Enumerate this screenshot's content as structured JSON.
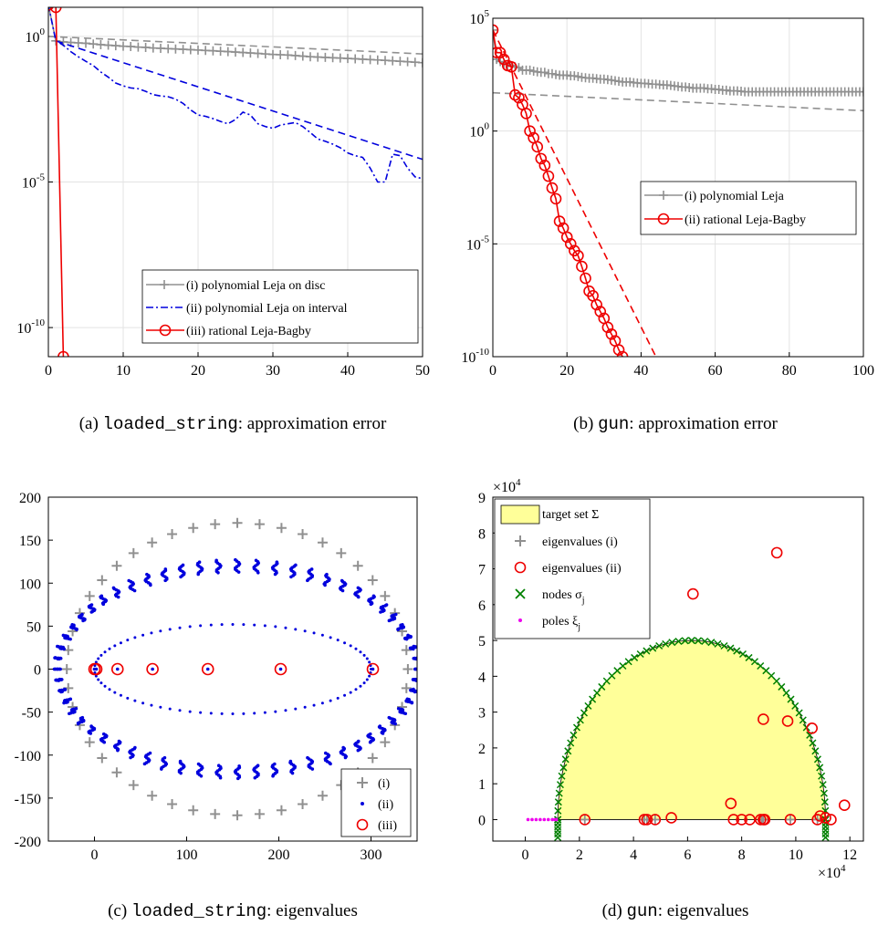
{
  "chart_data": [
    {
      "id": "a",
      "type": "line",
      "caption_code": "loaded_string",
      "caption_text": ": approximation error",
      "caption_prefix": "(a) ",
      "yscale": "log",
      "xlim": [
        0,
        50
      ],
      "ylim": [
        1e-11,
        10.0
      ],
      "xticks": [
        0,
        10,
        20,
        30,
        40,
        50
      ],
      "xtick_labels": [
        "0",
        "10",
        "20",
        "30",
        "40",
        "50"
      ],
      "yticks": [
        1,
        1e-05,
        1e-10
      ],
      "ytick_labels": [
        {
          "base": "10",
          "exp": "0"
        },
        {
          "base": "10",
          "exp": "-5"
        },
        {
          "base": "10",
          "exp": "-10"
        }
      ],
      "grid": true,
      "legend": "bottom-right",
      "series": [
        {
          "name": "(i) polynomial Leja on disc",
          "color": "#909090",
          "style": "plus-line",
          "x": [
            0,
            1,
            2,
            3,
            4,
            5,
            6,
            7,
            8,
            9,
            10,
            11,
            12,
            13,
            14,
            15,
            16,
            17,
            18,
            19,
            20,
            21,
            22,
            23,
            24,
            25,
            26,
            27,
            28,
            29,
            30,
            31,
            32,
            33,
            34,
            35,
            36,
            37,
            38,
            39,
            40,
            41,
            42,
            43,
            44,
            45,
            46,
            47,
            48,
            49,
            50
          ],
          "y": [
            12,
            0.7,
            0.65,
            0.62,
            0.6,
            0.58,
            0.55,
            0.52,
            0.5,
            0.48,
            0.46,
            0.45,
            0.43,
            0.42,
            0.4,
            0.39,
            0.38,
            0.37,
            0.36,
            0.35,
            0.34,
            0.33,
            0.32,
            0.31,
            0.3,
            0.29,
            0.28,
            0.27,
            0.26,
            0.25,
            0.24,
            0.235,
            0.23,
            0.22,
            0.21,
            0.2,
            0.195,
            0.19,
            0.185,
            0.18,
            0.175,
            0.17,
            0.165,
            0.16,
            0.155,
            0.15,
            0.145,
            0.14,
            0.135,
            0.13,
            0.125
          ]
        },
        {
          "name": "",
          "color": "#909090",
          "style": "dashed",
          "x": [
            0,
            50
          ],
          "y": [
            1.0,
            0.25
          ]
        },
        {
          "name": "(ii) polynomial Leja on interval",
          "color": "#0000dd",
          "style": "dashdot",
          "x": [
            0,
            1,
            2,
            3,
            4,
            5,
            6,
            7,
            8,
            9,
            10,
            11,
            12,
            13,
            14,
            15,
            16,
            17,
            18,
            19,
            20,
            21,
            22,
            23,
            24,
            25,
            26,
            27,
            28,
            29,
            30,
            31,
            32,
            33,
            34,
            35,
            36,
            37,
            38,
            39,
            40,
            41,
            42,
            43,
            44,
            45,
            46,
            47,
            48,
            49,
            50
          ],
          "y": [
            12,
            0.7,
            0.5,
            0.3,
            0.2,
            0.14,
            0.1,
            0.06,
            0.04,
            0.025,
            0.02,
            0.017,
            0.016,
            0.013,
            0.01,
            0.009,
            0.0085,
            0.007,
            0.005,
            0.003,
            0.002,
            0.0018,
            0.0015,
            0.0012,
            0.001,
            0.0014,
            0.0025,
            0.002,
            0.001,
            0.0008,
            0.0007,
            0.0009,
            0.001,
            0.0011,
            0.0008,
            0.0005,
            0.0003,
            0.00025,
            0.0002,
            0.00015,
            0.0001,
            8e-05,
            7e-05,
            3e-05,
            1e-05,
            1e-05,
            9e-05,
            8e-05,
            3e-05,
            1.5e-05,
            1.3e-05
          ]
        },
        {
          "name": "",
          "color": "#0000dd",
          "style": "dashed",
          "x": [
            1,
            50
          ],
          "y": [
            0.7,
            6e-05
          ]
        },
        {
          "name": "(iii) rational Leja-Bagby",
          "color": "#ee0000",
          "style": "circle-line",
          "x": [
            0,
            1,
            2
          ],
          "y": [
            12,
            10,
            1e-11
          ]
        }
      ]
    },
    {
      "id": "b",
      "type": "line",
      "caption_code": "gun",
      "caption_text": ": approximation error",
      "caption_prefix": "(b) ",
      "yscale": "log",
      "xlim": [
        0,
        100
      ],
      "ylim": [
        1e-10,
        100000.0
      ],
      "xticks": [
        0,
        20,
        40,
        60,
        80,
        100
      ],
      "xtick_labels": [
        "0",
        "20",
        "40",
        "60",
        "80",
        "100"
      ],
      "yticks": [
        100000.0,
        1,
        1e-05,
        1e-10
      ],
      "ytick_labels": [
        {
          "base": "10",
          "exp": "5"
        },
        {
          "base": "10",
          "exp": "0"
        },
        {
          "base": "10",
          "exp": "-5"
        },
        {
          "base": "10",
          "exp": "-10"
        }
      ],
      "grid": true,
      "legend": "center-right",
      "series": [
        {
          "name": "(i) polynomial Leja",
          "color": "#909090",
          "style": "plus-line",
          "x": [
            0,
            1,
            2,
            3,
            4,
            5,
            6,
            7,
            8,
            9,
            10,
            11,
            12,
            13,
            14,
            15,
            16,
            17,
            18,
            19,
            20,
            21,
            22,
            23,
            24,
            25,
            26,
            27,
            28,
            29,
            30,
            31,
            32,
            33,
            34,
            35,
            36,
            37,
            38,
            39,
            40,
            41,
            42,
            43,
            44,
            45,
            46,
            47,
            48,
            49,
            50,
            51,
            52,
            53,
            54,
            55,
            56,
            57,
            58,
            59,
            60,
            61,
            62,
            63,
            64,
            65,
            66,
            67,
            68,
            69,
            70,
            71,
            72,
            73,
            74,
            75,
            76,
            77,
            78,
            79,
            80,
            81,
            82,
            83,
            84,
            85,
            86,
            87,
            88,
            89,
            90,
            91,
            92,
            93,
            94,
            95,
            96,
            97,
            98,
            99,
            100
          ],
          "y": [
            30000,
            1500,
            1200,
            1000,
            900,
            800,
            700,
            650,
            500,
            500,
            500,
            450,
            420,
            400,
            400,
            350,
            350,
            320,
            300,
            300,
            300,
            280,
            280,
            260,
            240,
            230,
            220,
            220,
            210,
            200,
            200,
            190,
            180,
            170,
            160,
            150,
            150,
            150,
            140,
            135,
            130,
            130,
            125,
            120,
            120,
            115,
            110,
            110,
            105,
            100,
            95,
            90,
            90,
            85,
            80,
            80,
            80,
            80,
            75,
            75,
            70,
            70,
            65,
            65,
            60,
            60,
            60,
            58,
            55,
            55,
            55,
            55,
            55,
            55,
            55,
            55,
            55,
            55,
            55,
            55,
            55,
            55,
            55,
            55,
            55,
            55,
            55,
            55,
            55,
            55,
            55,
            55,
            55,
            55,
            55,
            55,
            55,
            55,
            55,
            55,
            55
          ]
        },
        {
          "name": "",
          "color": "#909090",
          "style": "dashed",
          "x": [
            0,
            100
          ],
          "y": [
            50,
            8
          ]
        },
        {
          "name": "(ii) rational Leja-Bagby",
          "color": "#ee0000",
          "style": "circle-line",
          "x": [
            0,
            1,
            2,
            3,
            4,
            5,
            6,
            7,
            8,
            9,
            10,
            11,
            12,
            13,
            14,
            15,
            16,
            17,
            18,
            19,
            20,
            21,
            22,
            23,
            24,
            25,
            26,
            27,
            28,
            29,
            30,
            31,
            32,
            33,
            34,
            35,
            36,
            37
          ],
          "y": [
            30000,
            3000,
            3000,
            1500,
            800,
            700,
            40,
            30,
            15,
            6,
            1,
            0.5,
            0.2,
            0.06,
            0.03,
            0.01,
            0.003,
            0.001,
            0.0001,
            5e-05,
            2e-05,
            1e-05,
            5e-06,
            3e-06,
            1e-06,
            3e-07,
            8e-08,
            5e-08,
            2e-08,
            1e-08,
            5e-09,
            2e-09,
            1e-09,
            5e-10,
            2e-10,
            1e-10,
            5e-11,
            2e-11
          ]
        },
        {
          "name": "",
          "color": "#ee0000",
          "style": "dashed",
          "x": [
            0,
            44
          ],
          "y": [
            30000,
            1e-10
          ]
        }
      ]
    },
    {
      "id": "c",
      "type": "scatter",
      "caption_code": "loaded_string",
      "caption_text": ": eigenvalues",
      "caption_prefix": "(c) ",
      "xlim": [
        -50,
        350
      ],
      "ylim": [
        -200,
        200
      ],
      "xticks": [
        0,
        100,
        200,
        300
      ],
      "xtick_labels": [
        "0",
        "100",
        "200",
        "300"
      ],
      "yticks": [
        200,
        150,
        100,
        50,
        0,
        -50,
        -100,
        -150,
        -200
      ],
      "ytick_labels": [
        "200",
        "150",
        "100",
        "50",
        "0",
        "-50",
        "-100",
        "-150",
        "-200"
      ],
      "grid": false,
      "legend": "bottom-right",
      "ellipses": {
        "outer": {
          "cx": 155,
          "cy": 0,
          "rx": 185,
          "ry": 170
        },
        "blue": {
          "cx": 155,
          "cy": 0,
          "rx": 195,
          "ry": 120
        },
        "inner": {
          "cx": 150,
          "cy": 0,
          "rx": 150,
          "ry": 52
        }
      },
      "series": [
        {
          "name": "(i)",
          "color": "#909090",
          "marker": "plus"
        },
        {
          "name": "(ii)",
          "color": "#0000dd",
          "marker": "dot"
        },
        {
          "name": "(iii)",
          "color": "#ee0000",
          "marker": "circle",
          "x": [
            0,
            2,
            25,
            63,
            123,
            202,
            302
          ],
          "y": [
            0,
            0,
            0,
            0,
            0,
            0,
            0
          ]
        }
      ]
    },
    {
      "id": "d",
      "type": "scatter",
      "caption_code": "gun",
      "caption_text": ": eigenvalues",
      "caption_prefix": "(d) ",
      "xlim": [
        -1.2,
        12.5
      ],
      "ylim": [
        -0.6,
        9
      ],
      "x_multiplier": {
        "base": "×10",
        "exp": "4"
      },
      "y_multiplier": {
        "base": "×10",
        "exp": "4"
      },
      "xticks": [
        0,
        2,
        4,
        6,
        8,
        10,
        12
      ],
      "xtick_labels": [
        "0",
        "2",
        "4",
        "6",
        "8",
        "10",
        "12"
      ],
      "yticks": [
        0,
        1,
        2,
        3,
        4,
        5,
        6,
        7,
        8,
        9
      ],
      "ytick_labels": [
        "0",
        "1",
        "2",
        "3",
        "4",
        "5",
        "6",
        "7",
        "8",
        "9"
      ],
      "grid": false,
      "legend": "top-left",
      "target_color": "#ffff99",
      "semicircle": {
        "cx": 6.15,
        "r": 4.95,
        "height": 5.0
      },
      "series": [
        {
          "name": "target set Σ",
          "color": "#ffff99",
          "marker": "patch"
        },
        {
          "name": "eigenvalues (i)",
          "color": "#909090",
          "marker": "plus",
          "x": [
            2.2,
            4.4,
            4.5,
            4.8,
            8.75,
            8.8,
            9.8,
            10.8
          ],
          "y": [
            0,
            0,
            0,
            0,
            0,
            0,
            0,
            0
          ]
        },
        {
          "name": "eigenvalues (ii)",
          "color": "#ee0000",
          "marker": "circle",
          "x": [
            9.3,
            6.2,
            8.8,
            9.7,
            10.6,
            7.6,
            11.8,
            2.2,
            4.4,
            4.5,
            4.8,
            5.4,
            7.7,
            8.0,
            8.3,
            8.7,
            8.8,
            8.85,
            9.8,
            10.8,
            10.9,
            11.3,
            11.1
          ],
          "y": [
            7.45,
            6.3,
            2.8,
            2.75,
            2.55,
            0.45,
            0.4,
            0,
            0,
            0,
            0,
            0.05,
            0,
            0,
            0,
            0,
            0,
            0,
            0,
            0,
            0.1,
            0,
            0.05
          ]
        },
        {
          "name": "nodes σ",
          "sub": "j",
          "color": "#008000",
          "marker": "x"
        },
        {
          "name": "poles ξ",
          "sub": "j",
          "color": "#ee00ee",
          "marker": "point",
          "x": [
            0.1,
            0.25,
            0.4,
            0.55,
            0.7,
            0.85,
            1.0,
            1.1,
            1.15
          ],
          "y": [
            0,
            0,
            0,
            0,
            0,
            0,
            0,
            0,
            0
          ]
        }
      ]
    }
  ]
}
